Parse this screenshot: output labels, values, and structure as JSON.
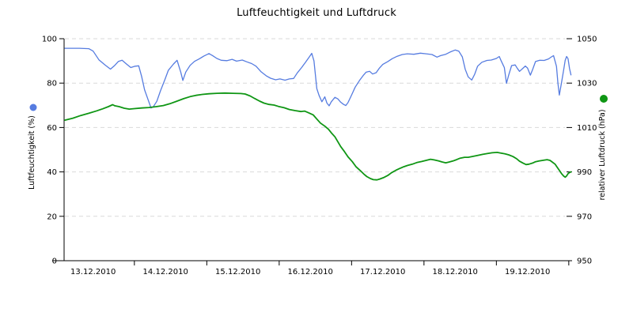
{
  "chart_data": {
    "type": "line",
    "title": "Luftfeuchtigkeit und Luftdruck",
    "background": "#ffffff",
    "grid": {
      "style": "dashed",
      "color": "#d9d9d9",
      "values_left_axis": [
        20,
        40,
        60,
        80,
        100
      ]
    },
    "x_axis": {
      "tick_labels": [
        "13.12.2010",
        "14.12.2010",
        "15.12.2010",
        "16.12.2010",
        "17.12.2010",
        "18.12.2010",
        "19.12.2010"
      ],
      "range_days": [
        0,
        6.96
      ],
      "tick_positions_days": [
        0.96,
        1.96,
        2.96,
        3.96,
        4.96,
        5.96,
        6.96
      ],
      "label_positions_days": [
        0.39,
        1.39,
        2.39,
        3.39,
        4.39,
        5.39,
        6.39
      ]
    },
    "y_left": {
      "title": "Luftfeuchtigkeit (%)",
      "range": [
        0,
        100
      ],
      "ticks": [
        0,
        20,
        40,
        60,
        80,
        100
      ],
      "legend_dot_color": "#567ce0"
    },
    "y_right": {
      "title": "relativer Luftdruck (hPa)",
      "range": [
        950,
        1050
      ],
      "ticks": [
        950,
        970,
        990,
        1010,
        1030,
        1050
      ],
      "legend_dot_color": "#0f9614"
    },
    "legend": "colored dot above each rotated axis title",
    "series": [
      {
        "name": "Luftfeuchtigkeit",
        "unit": "%",
        "axis": "left",
        "color": "#567ce0",
        "stroke_width": 1.3,
        "points": [
          [
            0,
            95.7
          ],
          [
            0.2,
            95.7
          ],
          [
            0.33,
            95.5
          ],
          [
            0.39,
            94.4
          ],
          [
            0.47,
            90.5
          ],
          [
            0.55,
            88.3
          ],
          [
            0.63,
            86.3
          ],
          [
            0.69,
            88
          ],
          [
            0.74,
            89.8
          ],
          [
            0.79,
            90.3
          ],
          [
            0.85,
            88.6
          ],
          [
            0.91,
            87
          ],
          [
            0.97,
            87.6
          ],
          [
            1.02,
            87.8
          ],
          [
            1.06,
            83
          ],
          [
            1.1,
            77
          ],
          [
            1.15,
            72.5
          ],
          [
            1.19,
            68.8
          ],
          [
            1.22,
            69.3
          ],
          [
            1.27,
            71.8
          ],
          [
            1.32,
            76.5
          ],
          [
            1.38,
            81.5
          ],
          [
            1.43,
            85.8
          ],
          [
            1.5,
            88.6
          ],
          [
            1.55,
            90.3
          ],
          [
            1.6,
            85
          ],
          [
            1.63,
            81.2
          ],
          [
            1.67,
            85
          ],
          [
            1.73,
            88
          ],
          [
            1.79,
            89.8
          ],
          [
            1.86,
            91
          ],
          [
            1.92,
            92.2
          ],
          [
            1.99,
            93.3
          ],
          [
            2.04,
            92.4
          ],
          [
            2.1,
            91.1
          ],
          [
            2.16,
            90.3
          ],
          [
            2.24,
            90.1
          ],
          [
            2.31,
            90.7
          ],
          [
            2.37,
            89.9
          ],
          [
            2.45,
            90.4
          ],
          [
            2.51,
            89.6
          ],
          [
            2.58,
            88.8
          ],
          [
            2.64,
            87.6
          ],
          [
            2.71,
            85.1
          ],
          [
            2.78,
            83.3
          ],
          [
            2.84,
            82.2
          ],
          [
            2.91,
            81.5
          ],
          [
            2.97,
            81.9
          ],
          [
            3.04,
            81.3
          ],
          [
            3.1,
            81.9
          ],
          [
            3.16,
            82.1
          ],
          [
            3.21,
            84.6
          ],
          [
            3.27,
            87
          ],
          [
            3.32,
            89.2
          ],
          [
            3.38,
            92
          ],
          [
            3.41,
            93.4
          ],
          [
            3.44,
            90
          ],
          [
            3.48,
            77.5
          ],
          [
            3.51,
            74.5
          ],
          [
            3.55,
            71.6
          ],
          [
            3.59,
            73.8
          ],
          [
            3.62,
            71
          ],
          [
            3.65,
            69.8
          ],
          [
            3.68,
            71.6
          ],
          [
            3.73,
            73.6
          ],
          [
            3.77,
            72.9
          ],
          [
            3.81,
            71.4
          ],
          [
            3.85,
            70.4
          ],
          [
            3.88,
            69.9
          ],
          [
            3.91,
            71.2
          ],
          [
            3.96,
            74.6
          ],
          [
            4.01,
            78.2
          ],
          [
            4.07,
            81.2
          ],
          [
            4.12,
            83.4
          ],
          [
            4.16,
            84.9
          ],
          [
            4.21,
            85.3
          ],
          [
            4.25,
            84.1
          ],
          [
            4.3,
            84.7
          ],
          [
            4.34,
            86.6
          ],
          [
            4.39,
            88.4
          ],
          [
            4.46,
            89.7
          ],
          [
            4.52,
            91
          ],
          [
            4.59,
            92.1
          ],
          [
            4.66,
            92.9
          ],
          [
            4.73,
            93.2
          ],
          [
            4.82,
            93
          ],
          [
            4.91,
            93.5
          ],
          [
            4.99,
            93.2
          ],
          [
            5.07,
            92.9
          ],
          [
            5.14,
            91.7
          ],
          [
            5.19,
            92.4
          ],
          [
            5.26,
            93
          ],
          [
            5.32,
            94
          ],
          [
            5.39,
            94.9
          ],
          [
            5.44,
            94.4
          ],
          [
            5.49,
            91.8
          ],
          [
            5.53,
            86.2
          ],
          [
            5.57,
            82.8
          ],
          [
            5.62,
            81.4
          ],
          [
            5.66,
            84
          ],
          [
            5.7,
            87.6
          ],
          [
            5.76,
            89.4
          ],
          [
            5.83,
            90.2
          ],
          [
            5.89,
            90.4
          ],
          [
            5.96,
            91.1
          ],
          [
            6,
            92
          ],
          [
            6.03,
            89.8
          ],
          [
            6.07,
            87
          ],
          [
            6.1,
            79.9
          ],
          [
            6.13,
            83.6
          ],
          [
            6.17,
            87.9
          ],
          [
            6.22,
            88.2
          ],
          [
            6.25,
            86.6
          ],
          [
            6.28,
            85.3
          ],
          [
            6.33,
            86.8
          ],
          [
            6.36,
            87.7
          ],
          [
            6.39,
            86.8
          ],
          [
            6.43,
            83.6
          ],
          [
            6.46,
            86.1
          ],
          [
            6.5,
            89.7
          ],
          [
            6.56,
            90.3
          ],
          [
            6.62,
            90.2
          ],
          [
            6.68,
            90.9
          ],
          [
            6.72,
            91.8
          ],
          [
            6.75,
            92.4
          ],
          [
            6.79,
            87.5
          ],
          [
            6.81,
            80
          ],
          [
            6.83,
            74.6
          ],
          [
            6.86,
            80.3
          ],
          [
            6.89,
            86
          ],
          [
            6.91,
            90.3
          ],
          [
            6.93,
            92
          ],
          [
            6.95,
            91
          ],
          [
            6.97,
            86.5
          ],
          [
            6.99,
            83.7
          ]
        ]
      },
      {
        "name": "relativer Luftdruck",
        "unit": "hPa",
        "axis": "right",
        "color": "#0f9614",
        "stroke_width": 1.8,
        "points": [
          [
            0,
            1013.3
          ],
          [
            0.11,
            1014.2
          ],
          [
            0.22,
            1015.4
          ],
          [
            0.33,
            1016.4
          ],
          [
            0.44,
            1017.5
          ],
          [
            0.52,
            1018.4
          ],
          [
            0.6,
            1019.4
          ],
          [
            0.66,
            1020.3
          ],
          [
            0.69,
            1019.8
          ],
          [
            0.75,
            1019.4
          ],
          [
            0.82,
            1018.7
          ],
          [
            0.89,
            1018.3
          ],
          [
            0.96,
            1018.5
          ],
          [
            1.06,
            1018.8
          ],
          [
            1.16,
            1019
          ],
          [
            1.26,
            1019.4
          ],
          [
            1.36,
            1019.9
          ],
          [
            1.45,
            1020.7
          ],
          [
            1.55,
            1021.9
          ],
          [
            1.64,
            1023
          ],
          [
            1.73,
            1023.9
          ],
          [
            1.81,
            1024.5
          ],
          [
            1.9,
            1024.9
          ],
          [
            1.99,
            1025.2
          ],
          [
            2.1,
            1025.4
          ],
          [
            2.21,
            1025.5
          ],
          [
            2.32,
            1025.4
          ],
          [
            2.43,
            1025.3
          ],
          [
            2.49,
            1025.1
          ],
          [
            2.56,
            1024.2
          ],
          [
            2.62,
            1023.1
          ],
          [
            2.69,
            1021.9
          ],
          [
            2.75,
            1021
          ],
          [
            2.82,
            1020.4
          ],
          [
            2.89,
            1020.1
          ],
          [
            2.95,
            1019.5
          ],
          [
            3.03,
            1018.9
          ],
          [
            3.1,
            1018.1
          ],
          [
            3.18,
            1017.6
          ],
          [
            3.26,
            1017.2
          ],
          [
            3.31,
            1017.4
          ],
          [
            3.37,
            1016.6
          ],
          [
            3.43,
            1015.7
          ],
          [
            3.48,
            1013.8
          ],
          [
            3.53,
            1012
          ],
          [
            3.59,
            1010.6
          ],
          [
            3.64,
            1009.2
          ],
          [
            3.68,
            1007.6
          ],
          [
            3.73,
            1005.8
          ],
          [
            3.77,
            1003.6
          ],
          [
            3.81,
            1001.4
          ],
          [
            3.86,
            999.2
          ],
          [
            3.91,
            996.8
          ],
          [
            3.97,
            994.6
          ],
          [
            4.02,
            992.4
          ],
          [
            4.08,
            990.6
          ],
          [
            4.13,
            989
          ],
          [
            4.17,
            987.9
          ],
          [
            4.22,
            987
          ],
          [
            4.26,
            986.5
          ],
          [
            4.31,
            986.4
          ],
          [
            4.35,
            986.8
          ],
          [
            4.4,
            987.4
          ],
          [
            4.46,
            988.4
          ],
          [
            4.51,
            989.6
          ],
          [
            4.57,
            990.7
          ],
          [
            4.62,
            991.5
          ],
          [
            4.68,
            992.3
          ],
          [
            4.73,
            992.9
          ],
          [
            4.8,
            993.5
          ],
          [
            4.86,
            994.2
          ],
          [
            4.93,
            994.7
          ],
          [
            4.99,
            995.2
          ],
          [
            5.05,
            995.7
          ],
          [
            5.1,
            995.4
          ],
          [
            5.16,
            995
          ],
          [
            5.21,
            994.5
          ],
          [
            5.26,
            994.1
          ],
          [
            5.3,
            994.4
          ],
          [
            5.36,
            994.9
          ],
          [
            5.41,
            995.5
          ],
          [
            5.46,
            996.2
          ],
          [
            5.52,
            996.6
          ],
          [
            5.57,
            996.6
          ],
          [
            5.64,
            997
          ],
          [
            5.7,
            997.4
          ],
          [
            5.77,
            997.9
          ],
          [
            5.84,
            998.3
          ],
          [
            5.9,
            998.6
          ],
          [
            5.97,
            998.8
          ],
          [
            6.02,
            998.5
          ],
          [
            6.08,
            998.1
          ],
          [
            6.13,
            997.7
          ],
          [
            6.19,
            996.9
          ],
          [
            6.24,
            995.9
          ],
          [
            6.28,
            994.8
          ],
          [
            6.33,
            993.9
          ],
          [
            6.37,
            993.3
          ],
          [
            6.41,
            993.5
          ],
          [
            6.46,
            994
          ],
          [
            6.5,
            994.6
          ],
          [
            6.55,
            994.9
          ],
          [
            6.6,
            995.2
          ],
          [
            6.66,
            995.5
          ],
          [
            6.7,
            995.2
          ],
          [
            6.73,
            994.5
          ],
          [
            6.77,
            993.5
          ],
          [
            6.8,
            992.1
          ],
          [
            6.83,
            990.7
          ],
          [
            6.86,
            989.2
          ],
          [
            6.89,
            988.1
          ],
          [
            6.91,
            987.6
          ],
          [
            6.93,
            988.2
          ],
          [
            6.95,
            989.2
          ],
          [
            6.97,
            989.7
          ],
          [
            6.99,
            990
          ]
        ]
      }
    ]
  }
}
